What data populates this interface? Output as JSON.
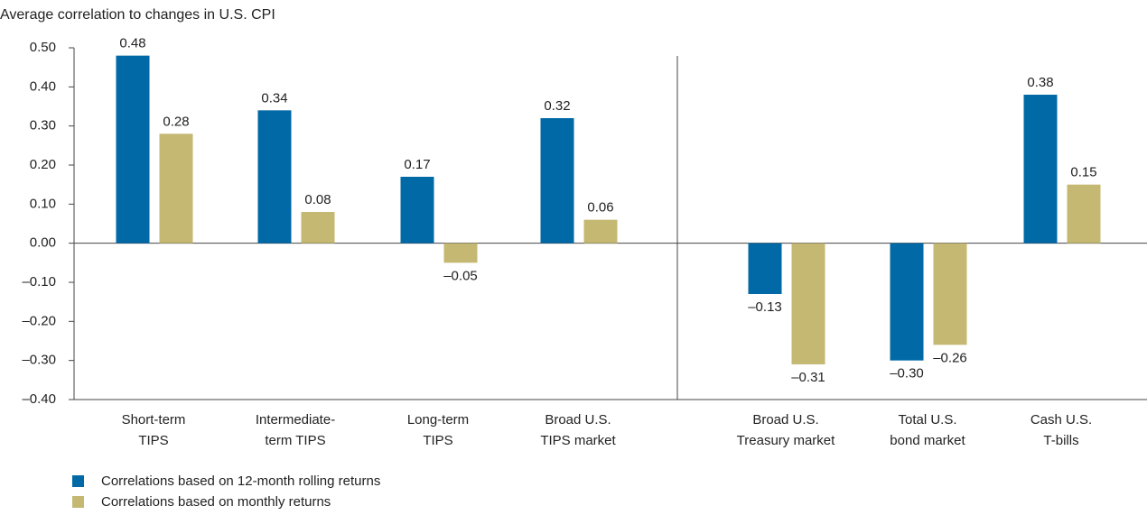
{
  "chart_data": {
    "type": "bar",
    "title": "Average correlation to changes in U.S. CPI",
    "categories": [
      "Short-term\nTIPS",
      "Intermediate-\nterm TIPS",
      "Long-term\nTIPS",
      "Broad U.S.\nTIPS market",
      "Broad U.S.\nTreasury market",
      "Total U.S.\nbond market",
      "Cash U.S.\nT-bills"
    ],
    "series": [
      {
        "name": "Correlations based on 12-month rolling returns",
        "color": "#0069a6",
        "values": [
          0.48,
          0.34,
          0.17,
          0.32,
          -0.13,
          -0.3,
          0.38
        ],
        "value_labels": [
          "0.48",
          "0.34",
          "0.17",
          "0.32",
          "–0.13",
          "–0.30",
          "0.38"
        ]
      },
      {
        "name": "Correlations based on monthly returns",
        "color": "#c4b872",
        "values": [
          0.28,
          0.08,
          -0.05,
          0.06,
          -0.31,
          -0.26,
          0.15
        ],
        "value_labels": [
          "0.28",
          "0.08",
          "–0.05",
          "0.06",
          "–0.31",
          "–0.26",
          "0.15"
        ]
      }
    ],
    "ylim": [
      -0.4,
      0.5
    ],
    "yticks": [
      {
        "value": 0.5,
        "label": "0.50"
      },
      {
        "value": 0.4,
        "label": "0.40"
      },
      {
        "value": 0.3,
        "label": "0.30"
      },
      {
        "value": 0.2,
        "label": "0.20"
      },
      {
        "value": 0.1,
        "label": "0.10"
      },
      {
        "value": 0,
        "label": "0.00"
      },
      {
        "value": -0.1,
        "label": "–0.10"
      },
      {
        "value": -0.2,
        "label": "–0.20"
      },
      {
        "value": -0.3,
        "label": "–0.30"
      },
      {
        "value": -0.4,
        "label": "–0.40"
      }
    ],
    "legend": "bottom-left"
  }
}
